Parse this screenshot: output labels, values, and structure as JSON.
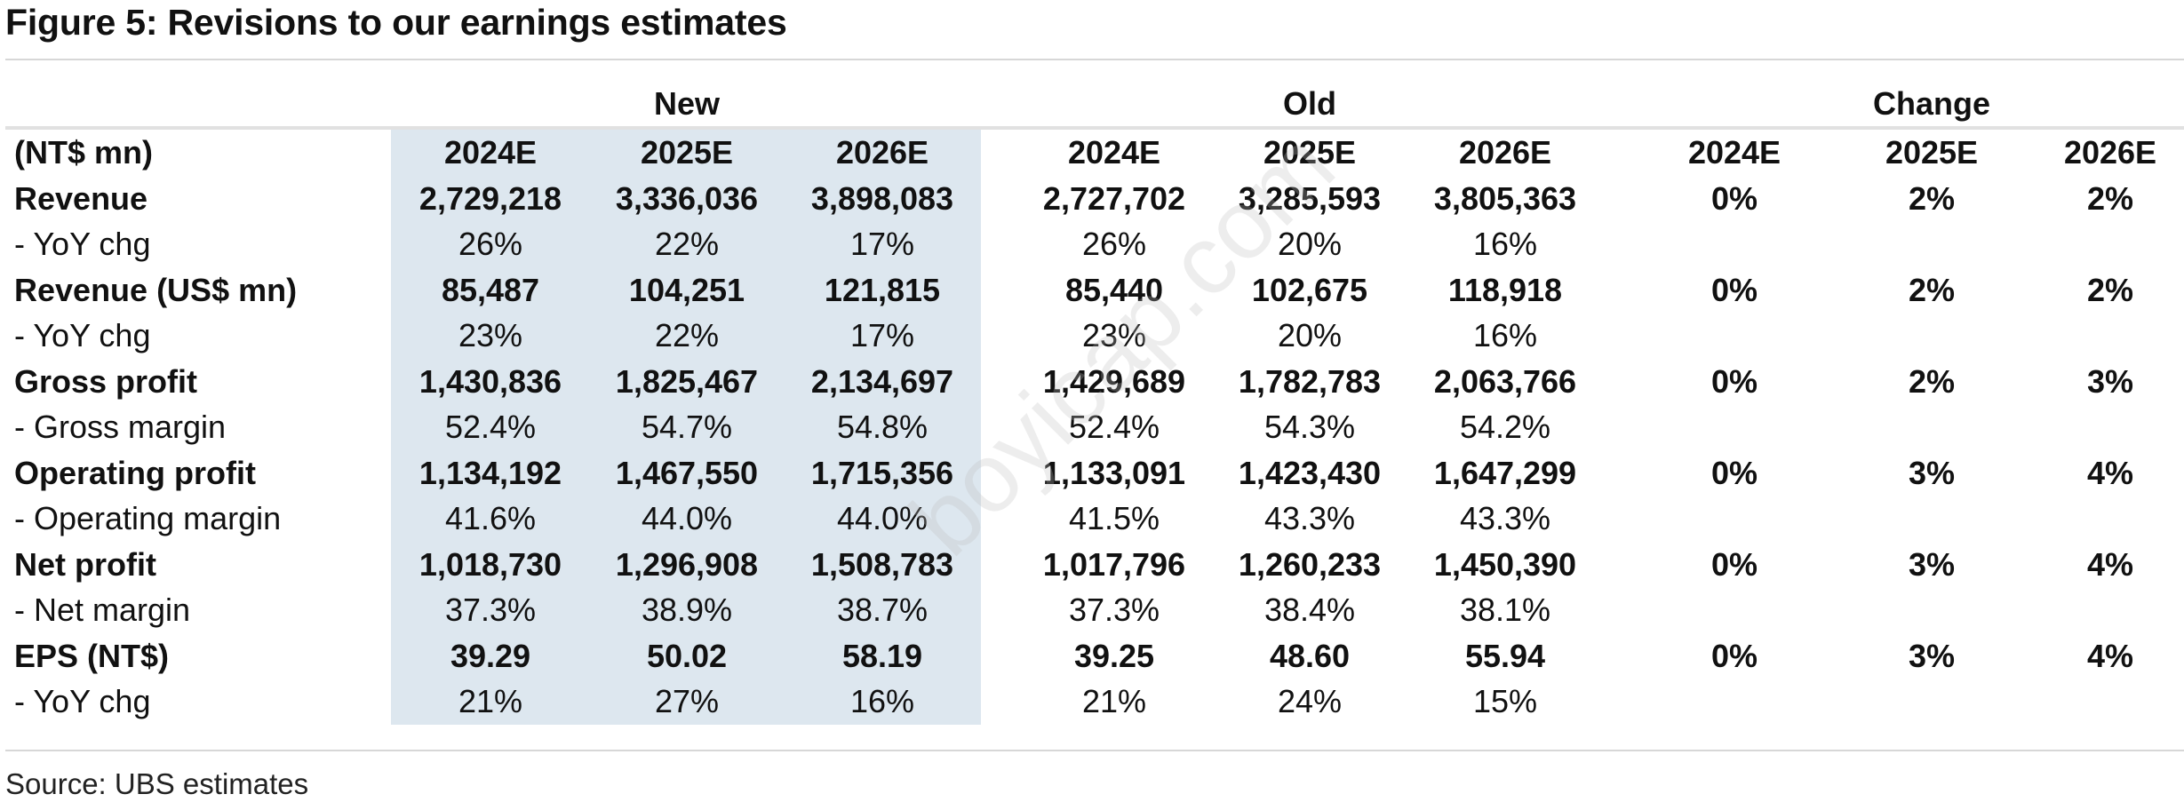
{
  "title": "Figure 5: Revisions to our earnings estimates",
  "groups": {
    "new": "New",
    "old": "Old",
    "change": "Change"
  },
  "header": {
    "label": "(NT$ mn)",
    "new": [
      "2024E",
      "2025E",
      "2026E"
    ],
    "old": [
      "2024E",
      "2025E",
      "2026E"
    ],
    "change": [
      "2024E",
      "2025E",
      "2026E"
    ]
  },
  "rows": [
    {
      "label": "Revenue",
      "new": [
        "2,729,218",
        "3,336,036",
        "3,898,083"
      ],
      "old": [
        "2,727,702",
        "3,285,593",
        "3,805,363"
      ],
      "change": [
        "0%",
        "2%",
        "2%"
      ]
    },
    {
      "label": " - YoY chg",
      "new": [
        "26%",
        "22%",
        "17%"
      ],
      "old": [
        "26%",
        "20%",
        "16%"
      ],
      "change": [
        "",
        "",
        ""
      ]
    },
    {
      "label": "Revenue (US$ mn)",
      "new": [
        "85,487",
        "104,251",
        "121,815"
      ],
      "old": [
        "85,440",
        "102,675",
        "118,918"
      ],
      "change": [
        "0%",
        "2%",
        "2%"
      ]
    },
    {
      "label": " - YoY chg",
      "new": [
        "23%",
        "22%",
        "17%"
      ],
      "old": [
        "23%",
        "20%",
        "16%"
      ],
      "change": [
        "",
        "",
        ""
      ]
    },
    {
      "label": "Gross profit",
      "new": [
        "1,430,836",
        "1,825,467",
        "2,134,697"
      ],
      "old": [
        "1,429,689",
        "1,782,783",
        "2,063,766"
      ],
      "change": [
        "0%",
        "2%",
        "3%"
      ]
    },
    {
      "label": " - Gross margin",
      "new": [
        "52.4%",
        "54.7%",
        "54.8%"
      ],
      "old": [
        "52.4%",
        "54.3%",
        "54.2%"
      ],
      "change": [
        "",
        "",
        ""
      ]
    },
    {
      "label": "Operating profit",
      "new": [
        "1,134,192",
        "1,467,550",
        "1,715,356"
      ],
      "old": [
        "1,133,091",
        "1,423,430",
        "1,647,299"
      ],
      "change": [
        "0%",
        "3%",
        "4%"
      ]
    },
    {
      "label": " - Operating margin",
      "new": [
        "41.6%",
        "44.0%",
        "44.0%"
      ],
      "old": [
        "41.5%",
        "43.3%",
        "43.3%"
      ],
      "change": [
        "",
        "",
        ""
      ]
    },
    {
      "label": "Net profit",
      "new": [
        "1,018,730",
        "1,296,908",
        "1,508,783"
      ],
      "old": [
        "1,017,796",
        "1,260,233",
        "1,450,390"
      ],
      "change": [
        "0%",
        "3%",
        "4%"
      ]
    },
    {
      "label": " - Net margin",
      "new": [
        "37.3%",
        "38.9%",
        "38.7%"
      ],
      "old": [
        "37.3%",
        "38.4%",
        "38.1%"
      ],
      "change": [
        "",
        "",
        ""
      ]
    },
    {
      "label": "EPS (NT$)",
      "new": [
        "39.29",
        "50.02",
        "58.19"
      ],
      "old": [
        "39.25",
        "48.60",
        "55.94"
      ],
      "change": [
        "0%",
        "3%",
        "4%"
      ]
    },
    {
      "label": " - YoY chg",
      "new": [
        "21%",
        "27%",
        "16%"
      ],
      "old": [
        "21%",
        "24%",
        "15%"
      ],
      "change": [
        "",
        "",
        ""
      ]
    }
  ],
  "source": "Source: UBS estimates",
  "watermark": "boyicap.com"
}
